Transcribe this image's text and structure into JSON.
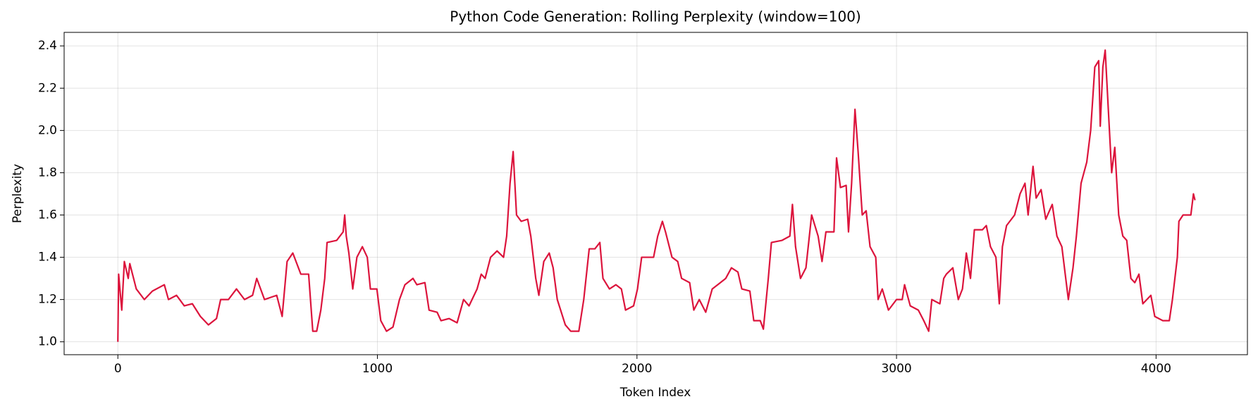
{
  "chart_data": {
    "type": "line",
    "title": "Python Code Generation: Rolling Perplexity (window=100)",
    "x_label": "Token Index",
    "y_label": "Perplexity",
    "color": "#dc143c",
    "grid": true,
    "xlim": [
      -207,
      4352
    ],
    "ylim": [
      0.939,
      2.464
    ],
    "xticks": [
      0,
      1000,
      2000,
      3000,
      4000
    ],
    "yticks": [
      {
        "value": 1,
        "label": "1.0"
      },
      {
        "value": 1.2,
        "label": "1.2"
      },
      {
        "value": 1.4,
        "label": "1.4"
      },
      {
        "value": 1.6,
        "label": "1.6"
      },
      {
        "value": 1.8,
        "label": "1.8"
      },
      {
        "value": 2,
        "label": "2.0"
      },
      {
        "value": 2.2,
        "label": "2.2"
      },
      {
        "value": 2.4,
        "label": "2.4"
      }
    ],
    "x": [
      0,
      3,
      15,
      25,
      40,
      46,
      71,
      102,
      133,
      179,
      195,
      226,
      256,
      287,
      318,
      349,
      380,
      396,
      426,
      457,
      488,
      519,
      535,
      565,
      612,
      633,
      652,
      674,
      705,
      735,
      751,
      766,
      782,
      797,
      806,
      843,
      868,
      874,
      880,
      890,
      905,
      921,
      942,
      961,
      973,
      998,
      1013,
      1035,
      1060,
      1085,
      1106,
      1137,
      1152,
      1183,
      1199,
      1230,
      1245,
      1276,
      1307,
      1332,
      1353,
      1384,
      1400,
      1415,
      1436,
      1461,
      1486,
      1498,
      1511,
      1523,
      1536,
      1554,
      1579,
      1591,
      1610,
      1622,
      1641,
      1662,
      1677,
      1693,
      1724,
      1745,
      1776,
      1795,
      1816,
      1838,
      1857,
      1869,
      1894,
      1919,
      1940,
      1956,
      1987,
      2002,
      2018,
      2064,
      2080,
      2098,
      2110,
      2135,
      2157,
      2172,
      2203,
      2219,
      2240,
      2265,
      2290,
      2311,
      2342,
      2364,
      2389,
      2404,
      2435,
      2450,
      2475,
      2487,
      2506,
      2518,
      2559,
      2589,
      2599,
      2611,
      2630,
      2651,
      2673,
      2698,
      2713,
      2728,
      2759,
      2769,
      2784,
      2806,
      2815,
      2827,
      2840,
      2852,
      2868,
      2883,
      2898,
      2920,
      2929,
      2945,
      2969,
      3000,
      3022,
      3031,
      3053,
      3084,
      3105,
      3124,
      3136,
      3167,
      3182,
      3192,
      3217,
      3238,
      3254,
      3269,
      3285,
      3300,
      3331,
      3346,
      3362,
      3383,
      3396,
      3408,
      3424,
      3455,
      3476,
      3495,
      3507,
      3526,
      3538,
      3557,
      3575,
      3600,
      3618,
      3637,
      3662,
      3680,
      3693,
      3711,
      3733,
      3748,
      3764,
      3779,
      3785,
      3795,
      3804,
      3816,
      3829,
      3841,
      3856,
      3872,
      3887,
      3903,
      3918,
      3934,
      3949,
      3980,
      3995,
      4026,
      4051,
      4063,
      4082,
      4088,
      4104,
      4134,
      4144,
      4150
    ],
    "values": [
      1.0,
      1.32,
      1.15,
      1.38,
      1.3,
      1.37,
      1.25,
      1.2,
      1.24,
      1.27,
      1.2,
      1.22,
      1.17,
      1.18,
      1.12,
      1.08,
      1.11,
      1.2,
      1.2,
      1.25,
      1.2,
      1.22,
      1.3,
      1.2,
      1.22,
      1.12,
      1.38,
      1.42,
      1.32,
      1.32,
      1.05,
      1.05,
      1.15,
      1.3,
      1.47,
      1.48,
      1.52,
      1.6,
      1.5,
      1.42,
      1.25,
      1.4,
      1.45,
      1.4,
      1.25,
      1.25,
      1.1,
      1.05,
      1.07,
      1.2,
      1.27,
      1.3,
      1.27,
      1.28,
      1.15,
      1.14,
      1.1,
      1.11,
      1.09,
      1.2,
      1.17,
      1.25,
      1.32,
      1.3,
      1.4,
      1.43,
      1.4,
      1.5,
      1.75,
      1.9,
      1.6,
      1.57,
      1.58,
      1.5,
      1.3,
      1.22,
      1.38,
      1.42,
      1.35,
      1.2,
      1.08,
      1.05,
      1.05,
      1.2,
      1.44,
      1.44,
      1.47,
      1.3,
      1.25,
      1.27,
      1.25,
      1.15,
      1.17,
      1.25,
      1.4,
      1.4,
      1.5,
      1.57,
      1.52,
      1.4,
      1.38,
      1.3,
      1.28,
      1.15,
      1.2,
      1.14,
      1.25,
      1.27,
      1.3,
      1.35,
      1.33,
      1.25,
      1.24,
      1.1,
      1.1,
      1.06,
      1.3,
      1.47,
      1.48,
      1.5,
      1.65,
      1.45,
      1.3,
      1.35,
      1.6,
      1.5,
      1.38,
      1.52,
      1.52,
      1.87,
      1.73,
      1.74,
      1.52,
      1.75,
      2.1,
      1.9,
      1.6,
      1.62,
      1.45,
      1.4,
      1.2,
      1.25,
      1.15,
      1.2,
      1.2,
      1.27,
      1.17,
      1.15,
      1.1,
      1.05,
      1.2,
      1.18,
      1.3,
      1.32,
      1.35,
      1.2,
      1.25,
      1.42,
      1.3,
      1.53,
      1.53,
      1.55,
      1.45,
      1.4,
      1.18,
      1.45,
      1.55,
      1.6,
      1.7,
      1.75,
      1.6,
      1.83,
      1.68,
      1.72,
      1.58,
      1.65,
      1.5,
      1.45,
      1.2,
      1.35,
      1.5,
      1.75,
      1.85,
      2.0,
      2.3,
      2.33,
      2.02,
      2.3,
      2.38,
      2.1,
      1.8,
      1.92,
      1.6,
      1.5,
      1.48,
      1.3,
      1.28,
      1.32,
      1.18,
      1.22,
      1.12,
      1.1,
      1.1,
      1.2,
      1.4,
      1.57,
      1.6,
      1.6,
      1.7,
      1.67
    ]
  }
}
